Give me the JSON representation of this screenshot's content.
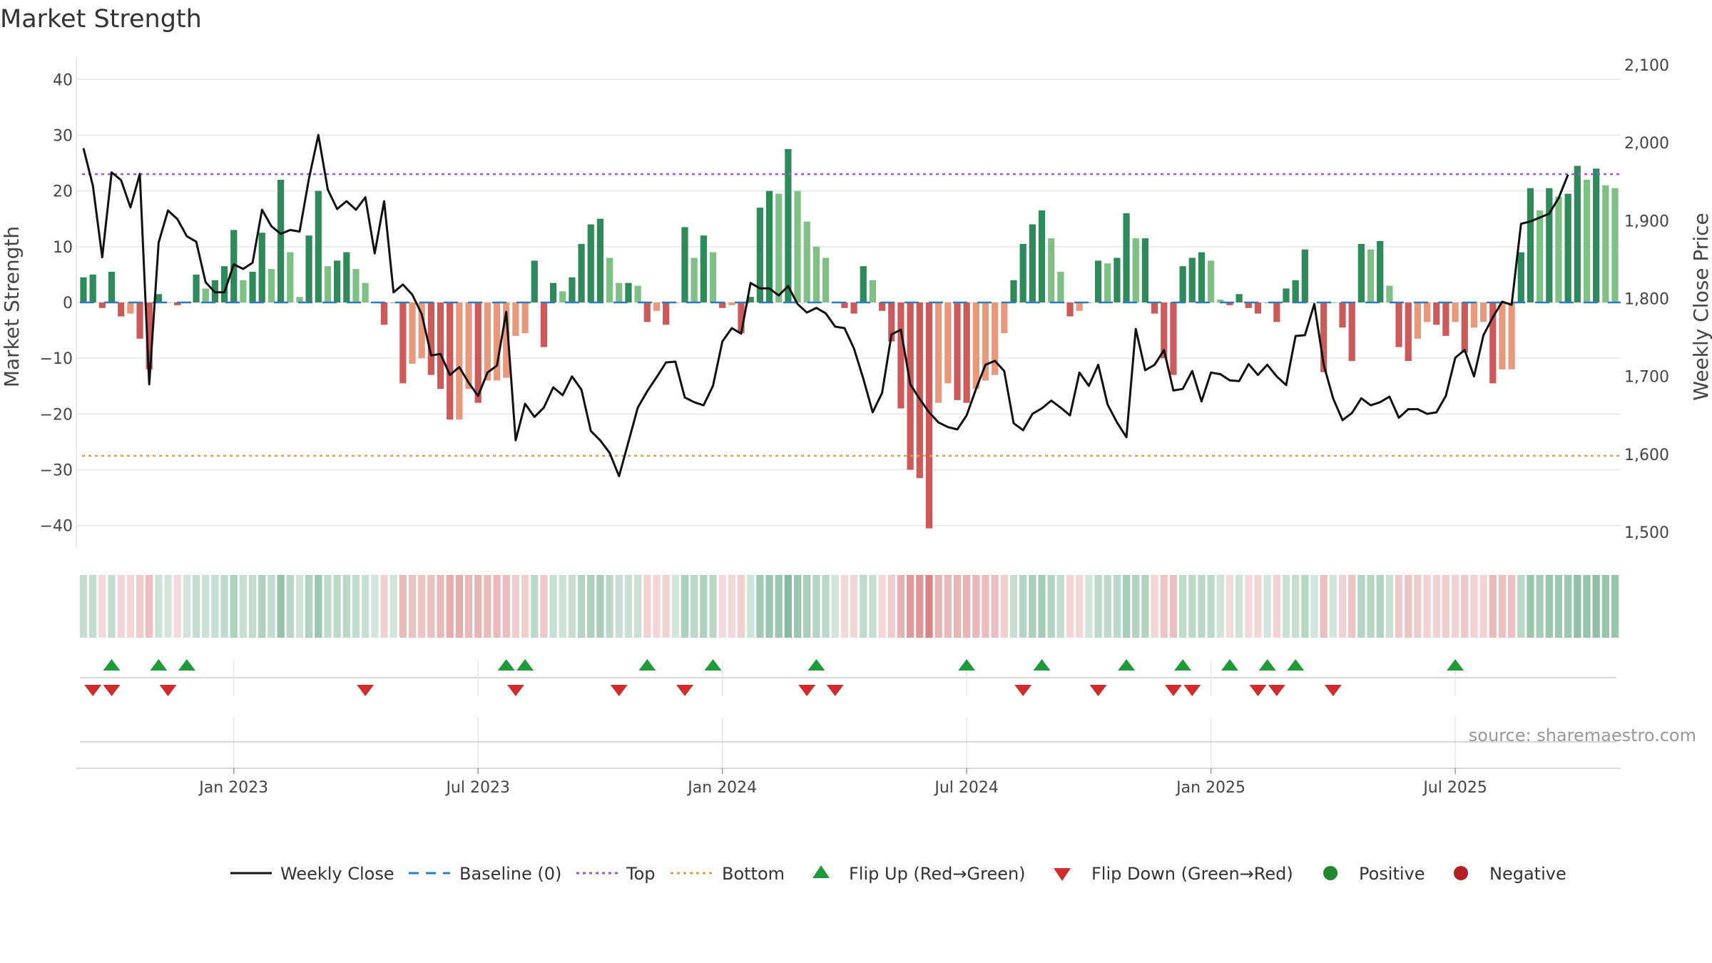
{
  "chart_data": {
    "type": "bar+line",
    "title": "Market Strength",
    "ylabel_left": "Market Strength",
    "ylabel_right": "Weekly Close Price",
    "ylim_left": [
      -44,
      44
    ],
    "ylim_right": [
      1480,
      2110
    ],
    "yticks_left": [
      40,
      30,
      20,
      10,
      0,
      -10,
      -20,
      -30,
      -40
    ],
    "yticks_left_labels": [
      "40",
      "30",
      "20",
      "10",
      "0",
      "−10",
      "−20",
      "−30",
      "−40"
    ],
    "yticks_right": [
      2100,
      2000,
      1900,
      1800,
      1700,
      1600,
      1500
    ],
    "yticks_right_labels": [
      "2,100",
      "2,000",
      "1,900",
      "1,800",
      "1,700",
      "1,600",
      "1,500"
    ],
    "xticks": [
      {
        "label": "Jan 2023",
        "week": 16
      },
      {
        "label": "Jul 2023",
        "week": 42
      },
      {
        "label": "Jan 2024",
        "week": 68
      },
      {
        "label": "Jul 2024",
        "week": 94
      },
      {
        "label": "Jan 2025",
        "week": 120
      },
      {
        "label": "Jul 2025",
        "week": 146
      }
    ],
    "top_level": 23,
    "bottom_level": -27.5,
    "strength": [
      4.5,
      5,
      -1,
      5.5,
      -2.5,
      -2,
      -6.5,
      -12,
      1.5,
      0,
      -0.5,
      0,
      5,
      2.5,
      4,
      6.5,
      13,
      4,
      5.5,
      12.5,
      6,
      22,
      9,
      1,
      12,
      20,
      6.5,
      7.5,
      9,
      6,
      3.5,
      0,
      -4,
      0,
      -14.5,
      -11,
      -10,
      -13,
      -15.5,
      -21,
      -21,
      -15.5,
      -18,
      -14,
      -14,
      -13.5,
      -6,
      -5.5,
      7.5,
      -8,
      3.5,
      2,
      4.5,
      10.5,
      14,
      15,
      8,
      3.5,
      3.5,
      3,
      -3.5,
      -1.5,
      -4,
      0,
      13.5,
      8,
      12,
      9,
      -1,
      -0.5,
      -5.5,
      1,
      17,
      20,
      19.5,
      27.5,
      20,
      14.5,
      10,
      8,
      0,
      -1,
      -2,
      6.5,
      4,
      -1.5,
      -7,
      -19,
      -30,
      -31.5,
      -40.5,
      -18,
      -14.5,
      -17.5,
      -18,
      -15.5,
      -14,
      -13,
      -5.5,
      4,
      10.5,
      14,
      16.5,
      11.5,
      5.5,
      -2.5,
      -1.5,
      0,
      7.5,
      7,
      8,
      16,
      11.5,
      11.5,
      -2,
      -10,
      -13,
      6.5,
      8,
      9,
      7.5,
      0.5,
      -0.5,
      1.5,
      -1,
      -2,
      0,
      -3.5,
      2.5,
      4,
      9.5,
      0,
      -12.5,
      0,
      -4.5,
      -10.5,
      10.5,
      9.5,
      11,
      3,
      -8,
      -10.5,
      -6.5,
      -3.5,
      -4,
      -6,
      -3.5,
      -9,
      -4.5,
      -3.5,
      -14.5,
      -12,
      -12,
      9,
      20.5,
      16.5,
      20.5,
      19,
      19.5,
      24.5,
      22,
      24,
      21,
      20.5
    ],
    "weekly_close": [
      1993,
      1945,
      1853,
      1962,
      1952,
      1917,
      1960,
      1690,
      1872,
      1913,
      1902,
      1880,
      1873,
      1821,
      1808,
      1808,
      1844,
      1838,
      1846,
      1914,
      1893,
      1883,
      1888,
      1886,
      1954,
      2010,
      1940,
      1915,
      1925,
      1914,
      1930,
      1858,
      1925,
      1808,
      1818,
      1805,
      1780,
      1727,
      1729,
      1702,
      1712,
      1692,
      1675,
      1705,
      1714,
      1783,
      1618,
      1665,
      1648,
      1660,
      1686,
      1676,
      1700,
      1683,
      1630,
      1618,
      1602,
      1572,
      1616,
      1660,
      1681,
      1699,
      1718,
      1719,
      1673,
      1667,
      1663,
      1688,
      1745,
      1762,
      1755,
      1820,
      1813,
      1813,
      1804,
      1816,
      1793,
      1782,
      1788,
      1781,
      1764,
      1762,
      1736,
      1697,
      1654,
      1679,
      1754,
      1760,
      1690,
      1671,
      1654,
      1641,
      1635,
      1632,
      1650,
      1684,
      1715,
      1720,
      1707,
      1640,
      1631,
      1652,
      1659,
      1669,
      1660,
      1650,
      1705,
      1688,
      1715,
      1664,
      1641,
      1622,
      1761,
      1708,
      1715,
      1734,
      1682,
      1684,
      1707,
      1668,
      1705,
      1703,
      1695,
      1694,
      1716,
      1702,
      1715,
      1700,
      1689,
      1752,
      1753,
      1793,
      1715,
      1672,
      1644,
      1653,
      1672,
      1663,
      1667,
      1674,
      1647,
      1658,
      1658,
      1652,
      1654,
      1675,
      1724,
      1734,
      1700,
      1753,
      1776,
      1796,
      1792,
      1896,
      1899,
      1904,
      1909,
      1929,
      1959
    ],
    "flips_up_weeks": [
      3,
      8,
      11,
      45,
      47,
      60,
      67,
      78,
      94,
      102,
      111,
      117,
      122,
      126,
      129,
      146
    ],
    "flips_down_weeks": [
      1,
      3,
      9,
      30,
      46,
      57,
      64,
      77,
      80,
      100,
      108,
      116,
      118,
      125,
      127,
      133
    ],
    "legend": [
      "Weekly Close",
      "Baseline (0)",
      "Top",
      "Bottom",
      "Flip Up (Red→Green)",
      "Flip Down (Green→Red)",
      "Positive",
      "Negative"
    ],
    "source": "source: sharemaestro.com",
    "colors": {
      "pos_rising": "#2e8a58",
      "pos_falling": "#7fc185",
      "neg_rising": "#e8997b",
      "neg_falling": "#cc5a5a",
      "line": "#111111",
      "baseline": "#2f7bbf",
      "top": "#9a5ad8",
      "bottom": "#e0a050",
      "flip_up": "#1f9a3a",
      "flip_down": "#d22b2b",
      "positive_dot": "#1f8a2b",
      "negative_dot": "#b22222",
      "grid": "#e6e6e6"
    }
  }
}
